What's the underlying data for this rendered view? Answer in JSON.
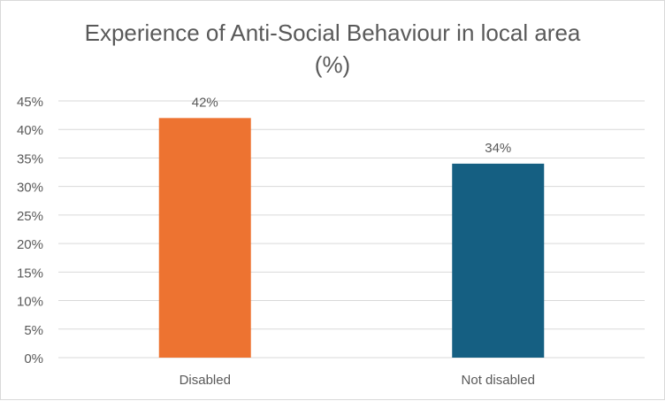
{
  "chart_data": {
    "type": "bar",
    "title": "Experience of Anti-Social Behaviour in local area",
    "subtitle": "(%)",
    "categories": [
      "Disabled",
      "Not disabled"
    ],
    "values": [
      42,
      34
    ],
    "data_labels": [
      "42%",
      "34%"
    ],
    "colors": [
      "#ed7331",
      "#155f82"
    ],
    "ylim": [
      0,
      45
    ],
    "yticks": [
      0,
      5,
      10,
      15,
      20,
      25,
      30,
      35,
      40,
      45
    ],
    "ytick_labels": [
      "0%",
      "5%",
      "10%",
      "15%",
      "20%",
      "25%",
      "30%",
      "35%",
      "40%",
      "45%"
    ],
    "grid": true,
    "legend": "none"
  }
}
